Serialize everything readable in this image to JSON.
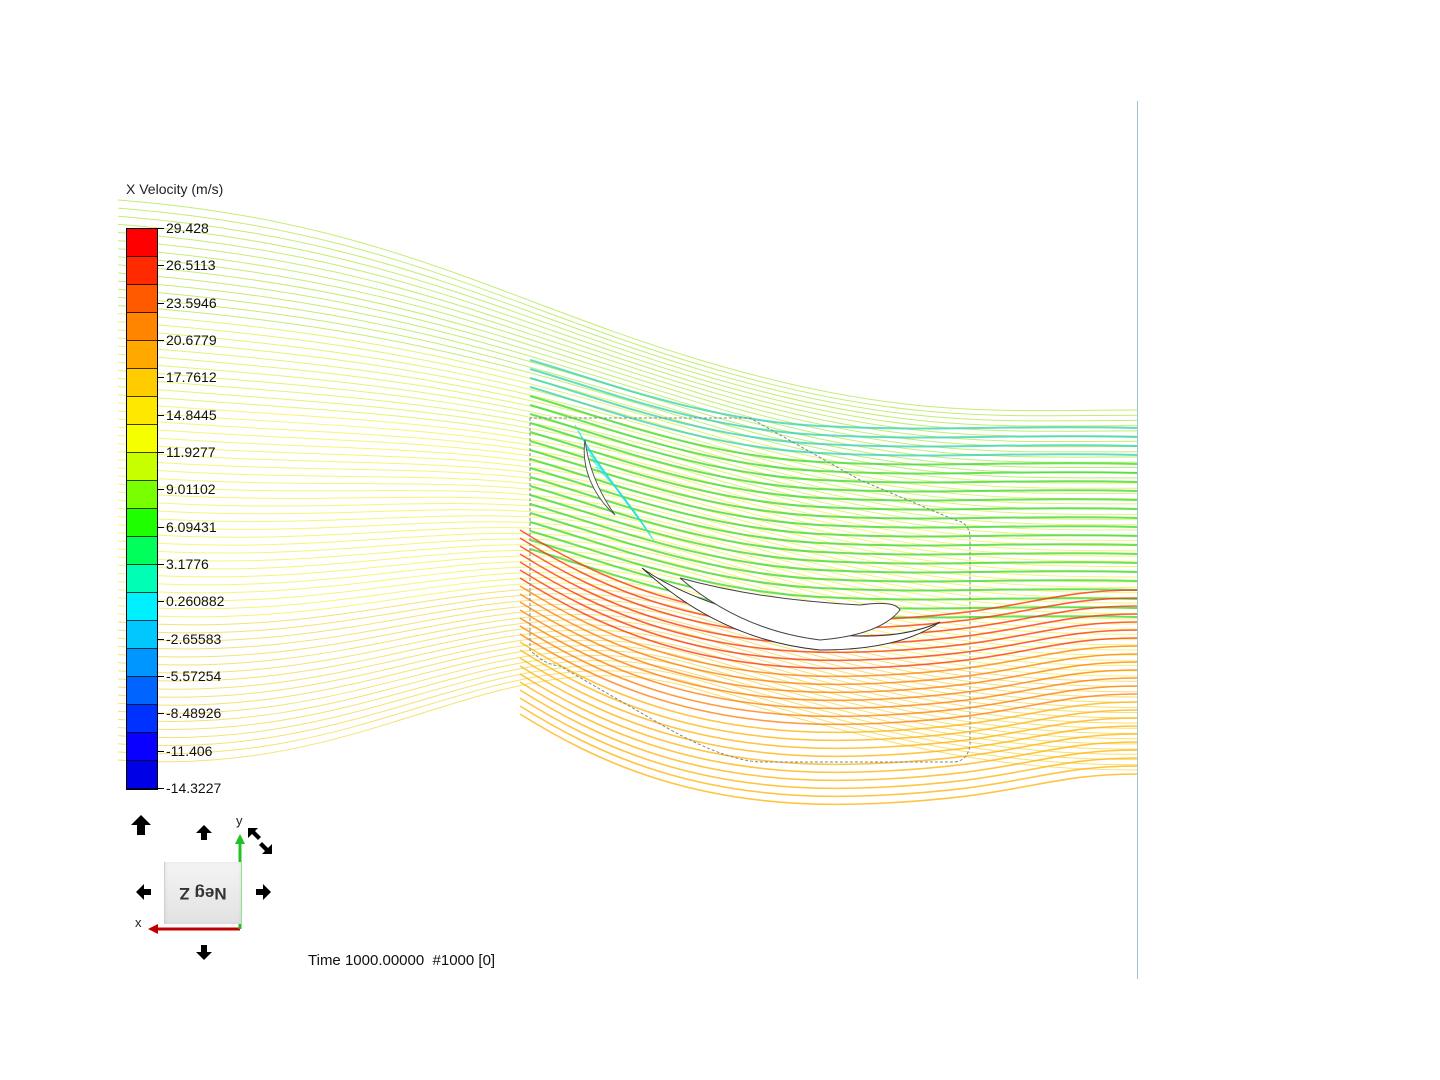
{
  "legend": {
    "title": "X Velocity (m/s)",
    "labels": [
      "29.428",
      "26.5113",
      "23.5946",
      "20.6779",
      "17.7612",
      "14.8445",
      "11.9277",
      "9.01102",
      "6.09431",
      "3.1776",
      "0.260882",
      "-2.65583",
      "-5.57254",
      "-8.48926",
      "-11.406",
      "-14.3227"
    ],
    "colors": [
      "#ff0000",
      "#ff2a00",
      "#ff5a00",
      "#ff8400",
      "#ffa800",
      "#ffcc00",
      "#ffe800",
      "#f6ff00",
      "#c8ff00",
      "#78ff00",
      "#1eff00",
      "#00ff5a",
      "#00ffb4",
      "#00f0ff",
      "#00c8ff",
      "#0096ff",
      "#0064ff",
      "#0032ff",
      "#0a00ff",
      "#0000e6"
    ]
  },
  "time_readout": "Time 1000.00000  #1000 [0]",
  "view_cube": {
    "label": "Neg Z"
  },
  "axes": {
    "x_label": "x",
    "y_label": "y",
    "x_color": "#c00000",
    "y_color": "#22c022"
  },
  "navigation": {
    "arrows": [
      "rotate-up",
      "pan-up",
      "pan-left",
      "pan-right",
      "pan-down",
      "rotate-view"
    ]
  }
}
